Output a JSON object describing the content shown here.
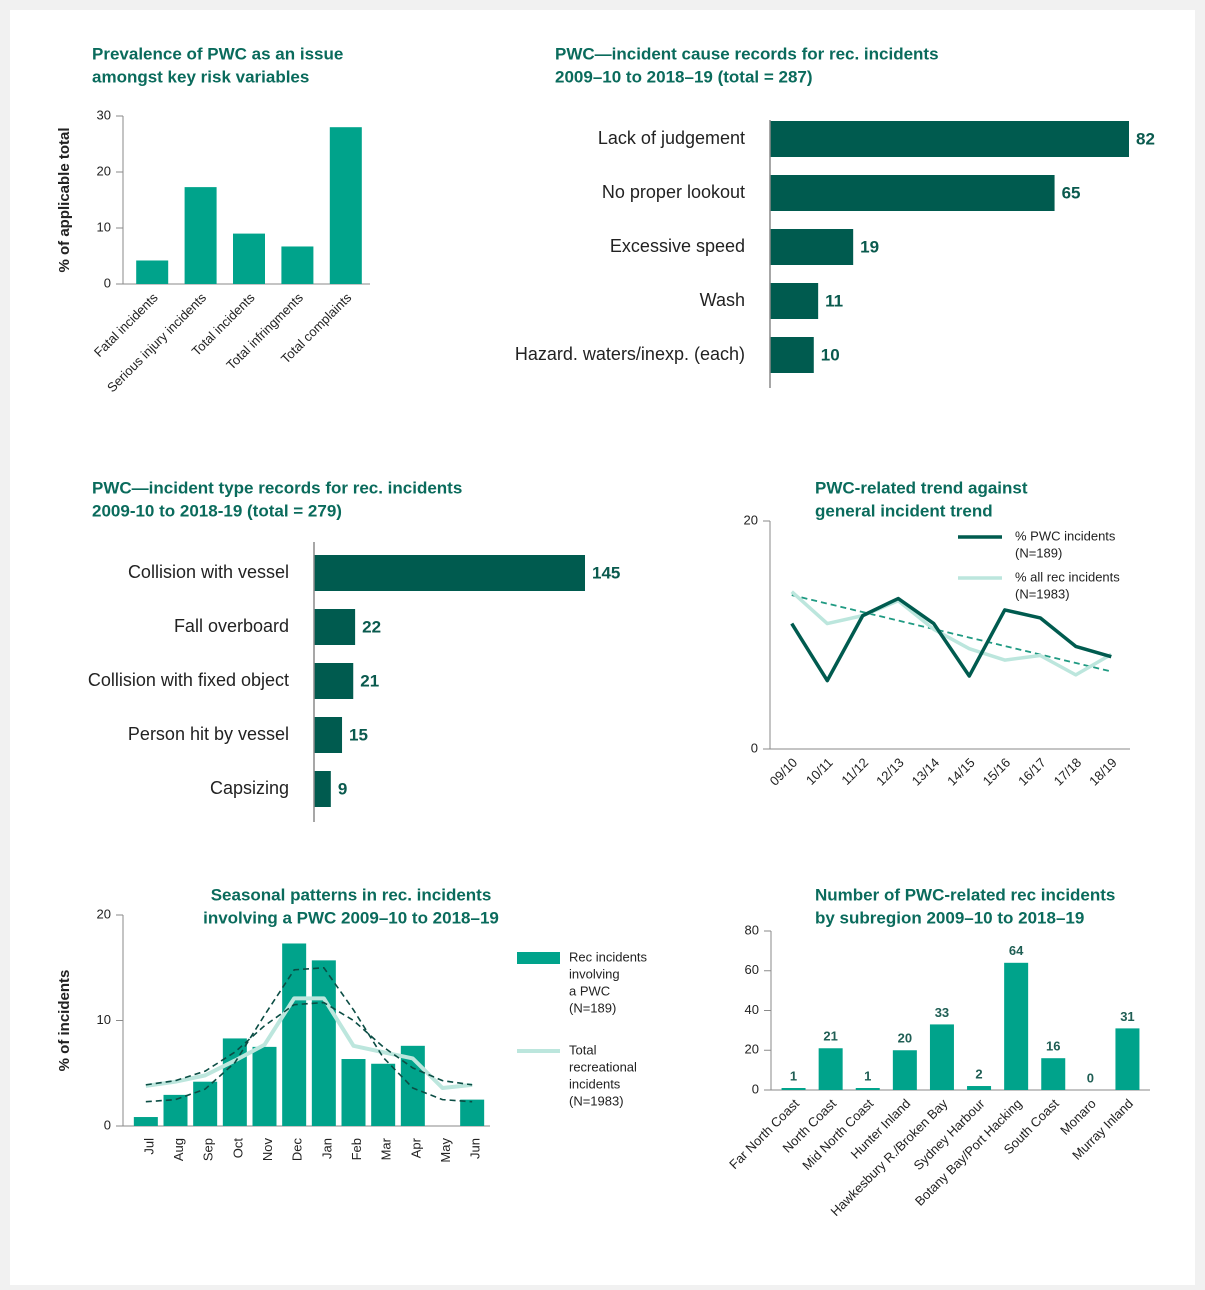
{
  "chart_data": [
    {
      "type": "bar",
      "title": [
        "Prevalence of PWC as an issue",
        "amongst key risk variables"
      ],
      "ylabel": "% of applicable total",
      "categories": [
        "Fatal incidents",
        "Serious injury incidents",
        "Total incidents",
        "Total infringments",
        "Total complaints"
      ],
      "values": [
        4.2,
        17.3,
        9,
        6.7,
        28
      ],
      "color": "#00a38b",
      "ylim": [
        0,
        30
      ],
      "yticks": [
        0,
        10,
        20,
        30
      ]
    },
    {
      "type": "hbar",
      "title": [
        "PWC—incident cause records for rec. incidents",
        "2009–10 to 2018–19 (total = 287)"
      ],
      "categories": [
        "Lack of judgement",
        "No proper lookout",
        "Excessive speed",
        "Wash",
        "Hazard. waters/inexp. (each)"
      ],
      "values": [
        82,
        65,
        19,
        11,
        10
      ],
      "color": "#005b4f"
    },
    {
      "type": "hbar",
      "title": [
        "PWC—incident type records for rec. incidents",
        "2009-10 to 2018-19 (total = 279)"
      ],
      "categories": [
        "Collision with vessel",
        "Fall overboard",
        "Collision with fixed object",
        "Person hit by vessel",
        "Capsizing"
      ],
      "values": [
        145,
        22,
        21,
        15,
        9
      ],
      "color": "#005b4f"
    },
    {
      "type": "line",
      "title": [
        "PWC-related trend against",
        "general incident trend"
      ],
      "categories": [
        "09/10",
        "10/11",
        "11/12",
        "12/13",
        "13/14",
        "14/15",
        "15/16",
        "16/17",
        "17/18",
        "18/19"
      ],
      "ylim": [
        0,
        20
      ],
      "yticks": [
        0,
        20
      ],
      "series": [
        {
          "name": [
            "% PWC incidents",
            "(N=189)"
          ],
          "color": "#005b4f",
          "values": [
            11,
            6,
            11.7,
            13.2,
            11,
            6.4,
            12.2,
            11.5,
            9,
            8.1
          ]
        },
        {
          "name": [
            "% all rec incidents",
            "(N=1983)"
          ],
          "color": "#bce6dd",
          "values": [
            13.8,
            11,
            11.7,
            13,
            10.5,
            8.8,
            7.8,
            8.2,
            6.5,
            8.3
          ]
        }
      ],
      "trend": {
        "color": "#1f9a82",
        "values": [
          13.5,
          6.8
        ]
      },
      "legend": "upper right"
    },
    {
      "type": "combo",
      "title": [
        "Seasonal patterns in rec. incidents",
        "involving a PWC 2009–10 to 2018–19"
      ],
      "ylabel": "% of incidents",
      "categories": [
        "Jul",
        "Aug",
        "Sep",
        "Oct",
        "Nov",
        "Dec",
        "Jan",
        "Feb",
        "Mar",
        "Apr",
        "May",
        "Jun"
      ],
      "ylim": [
        0,
        20
      ],
      "yticks": [
        0,
        10,
        20
      ],
      "series": [
        {
          "name": [
            "Rec incidents",
            "involving",
            "a PWC",
            "(N=189)"
          ],
          "kind": "bar",
          "color": "#00a38b",
          "values": [
            0.85,
            2.95,
            4.2,
            8.3,
            7.5,
            17.3,
            15.7,
            6.35,
            5.9,
            7.6,
            0,
            2.5
          ]
        },
        {
          "name": [
            "Total",
            "recreational",
            "incidents",
            "(N=1983)"
          ],
          "kind": "line",
          "color": "#bce6dd",
          "values": [
            3.8,
            4.2,
            4.8,
            6.2,
            7.7,
            12.1,
            12.1,
            7.6,
            7,
            6.4,
            3.6,
            3.9
          ]
        }
      ],
      "fits": [
        {
          "color": "#0b4d44",
          "values": [
            2.3,
            2.5,
            3.5,
            6,
            10.5,
            14.8,
            15,
            11,
            6.5,
            3.6,
            2.5,
            2.3
          ]
        },
        {
          "color": "#0b4d44",
          "values": [
            3.9,
            4.3,
            5.2,
            7,
            9.5,
            11.5,
            11.7,
            10,
            7.5,
            5.5,
            4.3,
            3.9
          ]
        }
      ],
      "legend": "right"
    },
    {
      "type": "bar",
      "title": [
        "Number of PWC-related rec incidents",
        "by subregion 2009–10 to 2018–19"
      ],
      "categories": [
        "Far North Coast",
        "North Coast",
        "Mid North Coast",
        "Hunter Inland",
        "Hawkesbury R./Broken Bay",
        "Sydney Harbour",
        "Botany Bay/Port Hacking",
        "South Coast",
        "Monaro",
        "Murray Inland"
      ],
      "values": [
        1,
        21,
        1,
        20,
        33,
        2,
        64,
        16,
        0,
        31
      ],
      "color": "#00a38b",
      "ylim": [
        0,
        80
      ],
      "yticks": [
        0,
        20,
        40,
        60,
        80
      ],
      "data_labels": true
    }
  ]
}
